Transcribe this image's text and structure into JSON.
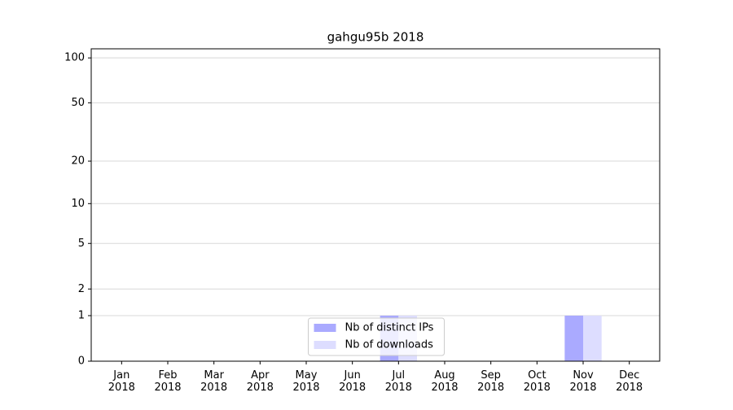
{
  "chart_data": {
    "type": "bar",
    "title": "gahgu95b 2018",
    "categories": [
      "Jan\n2018",
      "Feb\n2018",
      "Mar\n2018",
      "Apr\n2018",
      "May\n2018",
      "Jun\n2018",
      "Jul\n2018",
      "Aug\n2018",
      "Sep\n2018",
      "Oct\n2018",
      "Nov\n2018",
      "Dec\n2018"
    ],
    "series": [
      {
        "name": "Nb of distinct IPs",
        "color": "#aaaaff",
        "values": [
          0,
          0,
          0,
          0,
          0,
          0,
          1,
          0,
          0,
          0,
          1,
          0
        ]
      },
      {
        "name": "Nb of downloads",
        "color": "#ddddff",
        "values": [
          0,
          0,
          0,
          0,
          0,
          0,
          1,
          0,
          0,
          0,
          1,
          0
        ]
      }
    ],
    "yscale": "log1p",
    "ylim": [
      0,
      115
    ],
    "yticks": [
      0,
      1,
      2,
      5,
      10,
      20,
      50,
      100
    ],
    "grid": true,
    "legend": "lower center"
  }
}
